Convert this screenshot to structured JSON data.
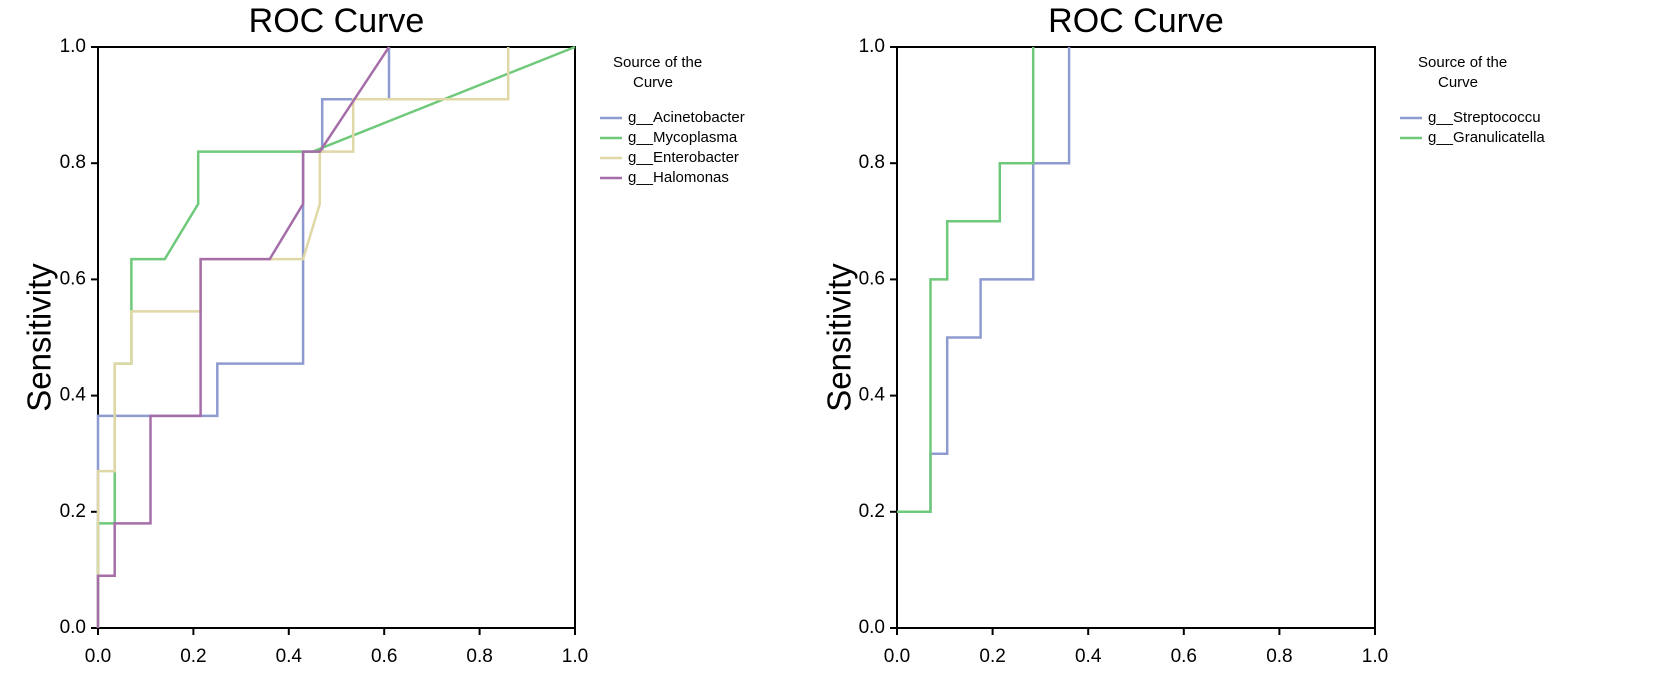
{
  "chart_data": [
    {
      "type": "line",
      "title": "ROC Curve",
      "xlabel": "",
      "ylabel": "Sensitivity",
      "xlim": [
        0,
        1
      ],
      "ylim": [
        0,
        1
      ],
      "xticks": [
        "0.0",
        "0.2",
        "0.4",
        "0.6",
        "0.8",
        "1.0"
      ],
      "yticks": [
        "0.0",
        "0.2",
        "0.4",
        "0.6",
        "0.8",
        "1.0"
      ],
      "grid": false,
      "legend_title_lines": [
        "Source of the",
        "Curve"
      ],
      "legend_position": "outside-right",
      "series": [
        {
          "name": "g__Acinetobacter",
          "color": "#8e9bd1",
          "x": [
            0,
            0,
            0.25,
            0.25,
            0.43,
            0.43,
            0.47,
            0.47,
            0.61,
            0.61
          ],
          "y": [
            0,
            0.365,
            0.365,
            0.455,
            0.455,
            0.82,
            0.82,
            0.91,
            0.91,
            1.0
          ]
        },
        {
          "name": "g__Mycoplasma",
          "color": "#6fc97a",
          "x": [
            0,
            0,
            0.035,
            0.035,
            0.07,
            0.07,
            0.14,
            0.21,
            0.21,
            0.43,
            0.45,
            1.0
          ],
          "y": [
            0,
            0.18,
            0.18,
            0.455,
            0.455,
            0.635,
            0.635,
            0.73,
            0.82,
            0.82,
            0.82,
            1.0
          ]
        },
        {
          "name": "g__Enterobacter",
          "color": "#e0d8a6",
          "x": [
            0,
            0,
            0.035,
            0.035,
            0.07,
            0.07,
            0.215,
            0.215,
            0.43,
            0.43,
            0.465,
            0.465,
            0.535,
            0.535,
            0.86,
            0.86
          ],
          "y": [
            0,
            0.27,
            0.27,
            0.455,
            0.455,
            0.545,
            0.545,
            0.635,
            0.635,
            0.635,
            0.73,
            0.82,
            0.82,
            0.91,
            0.91,
            1.0
          ]
        },
        {
          "name": "g__Halomonas",
          "color": "#a56ea8",
          "x": [
            0,
            0,
            0.035,
            0.035,
            0.11,
            0.11,
            0.215,
            0.215,
            0.36,
            0.43,
            0.43,
            0.465,
            0.61
          ],
          "y": [
            0,
            0.09,
            0.09,
            0.18,
            0.18,
            0.365,
            0.365,
            0.635,
            0.635,
            0.73,
            0.82,
            0.82,
            1.0
          ]
        }
      ]
    },
    {
      "type": "line",
      "title": "ROC Curve",
      "xlabel": "",
      "ylabel": "Sensitivity",
      "xlim": [
        0,
        1
      ],
      "ylim": [
        0,
        1
      ],
      "xticks": [
        "0.0",
        "0.2",
        "0.4",
        "0.6",
        "0.8",
        "1.0"
      ],
      "yticks": [
        "0.0",
        "0.2",
        "0.4",
        "0.6",
        "0.8",
        "1.0"
      ],
      "grid": false,
      "legend_title_lines": [
        "Source of the",
        "Curve"
      ],
      "legend_position": "outside-right",
      "series": [
        {
          "name": "g__Streptococcu",
          "color": "#8e9bd1",
          "x": [
            0,
            0.07,
            0.07,
            0.105,
            0.105,
            0.175,
            0.175,
            0.285,
            0.285,
            0.36,
            0.36
          ],
          "y": [
            0.2,
            0.2,
            0.3,
            0.3,
            0.5,
            0.5,
            0.6,
            0.6,
            0.8,
            0.8,
            1.0
          ]
        },
        {
          "name": "g__Granulicatella",
          "color": "#6fc97a",
          "x": [
            0,
            0.07,
            0.07,
            0.105,
            0.105,
            0.215,
            0.215,
            0.285,
            0.285
          ],
          "y": [
            0.2,
            0.2,
            0.6,
            0.6,
            0.7,
            0.7,
            0.8,
            0.8,
            1.0
          ]
        }
      ]
    }
  ]
}
